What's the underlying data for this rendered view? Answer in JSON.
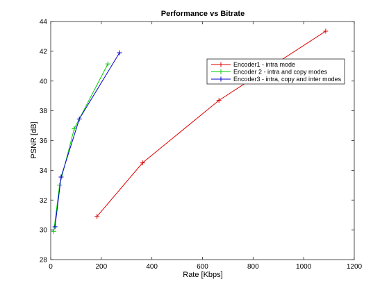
{
  "chart_data": {
    "type": "line",
    "title": "Performance vs Bitrate",
    "xlabel": "Rate [Kbps]",
    "ylabel": "PSNR [dB]",
    "xlim": [
      0,
      1200
    ],
    "ylim": [
      28,
      44
    ],
    "xticks": [
      "0",
      "200",
      "400",
      "600",
      "800",
      "1000",
      "1200"
    ],
    "yticks": [
      "28",
      "30",
      "32",
      "34",
      "36",
      "38",
      "40",
      "42",
      "44"
    ],
    "grid": false,
    "legend_position": "top-right",
    "series": [
      {
        "name": "Encoder1 - intra mode",
        "color": "#dd0000",
        "marker": "plus",
        "x": [
          183,
          363,
          665,
          1087
        ],
        "y": [
          30.9,
          34.5,
          38.7,
          43.35
        ]
      },
      {
        "name": "Encoder 2 - intra and copy modes",
        "color": "#00cc00",
        "marker": "plus",
        "x": [
          12,
          35,
          93,
          226
        ],
        "y": [
          29.9,
          33.0,
          36.8,
          41.15
        ]
      },
      {
        "name": "Encoder3 - intra, copy and inter modes",
        "color": "#0000cc",
        "marker": "plus",
        "x": [
          17,
          41,
          113,
          272
        ],
        "y": [
          30.2,
          33.55,
          37.45,
          41.9
        ]
      }
    ]
  }
}
